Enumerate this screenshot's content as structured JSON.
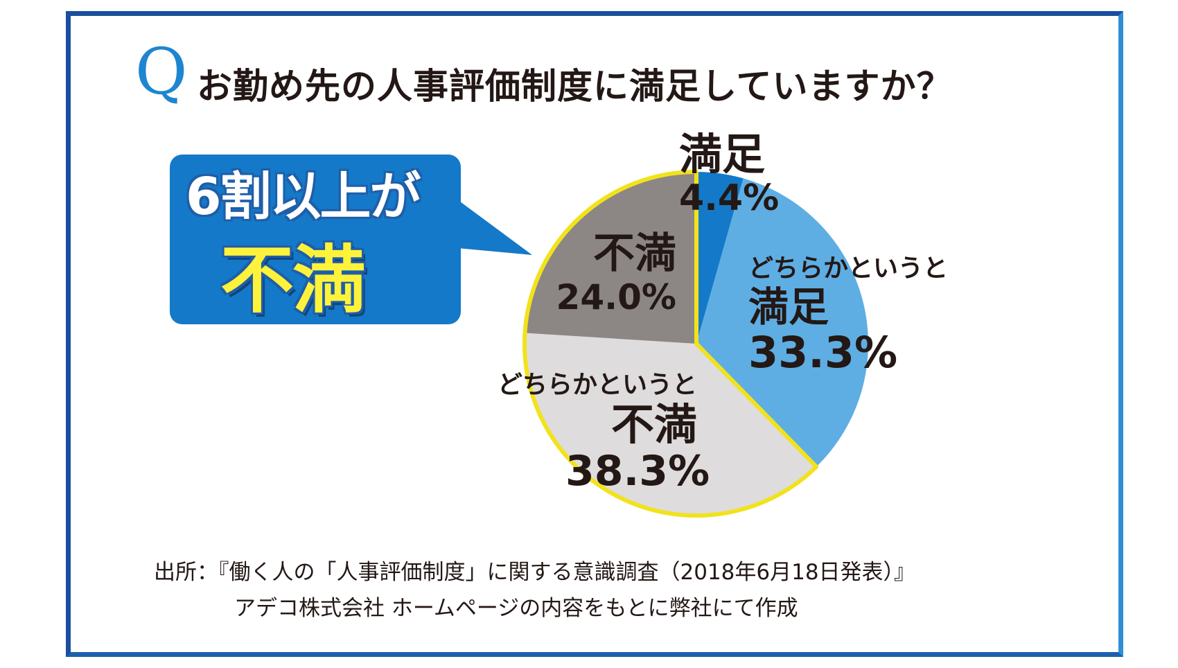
{
  "header": {
    "q_mark": "Q",
    "question": "お勤め先の人事評価制度に満足していますか？"
  },
  "callout": {
    "line1": "6割以上が",
    "line2": "不満"
  },
  "chart_data": {
    "type": "pie",
    "start": "12 o'clock, clockwise",
    "slices": [
      {
        "label": "満足",
        "value": 4.4,
        "value_text": "4.4%",
        "color": "#1479c8"
      },
      {
        "label": "どちらかというと満足",
        "label_line1": "どちらかというと",
        "label_line2": "満足",
        "value": 33.3,
        "value_text": "33.3%",
        "color": "#5eaee4"
      },
      {
        "label": "どちらかというと不満",
        "label_line1": "どちらかというと",
        "label_line2": "不満",
        "value": 38.3,
        "value_text": "38.3%",
        "color": "#dedcdc"
      },
      {
        "label": "不満",
        "value": 24.0,
        "value_text": "24.0%",
        "color": "#8c8685"
      }
    ],
    "highlight_color": "#f2e21c",
    "highlighted_slices": [
      "どちらかというと不満",
      "不満"
    ]
  },
  "source": {
    "line1": "出所：『働く人の「人事評価制度」に関する意識調査（2018年6月18日発表）』",
    "line2": "アデコ株式会社 ホームページの内容をもとに弊社にて作成"
  },
  "colors": {
    "frame": "#1a4f9e",
    "accent": "#1e86cf",
    "callout_bg": "#1479c8",
    "callout_emphasis": "#fff23b"
  }
}
